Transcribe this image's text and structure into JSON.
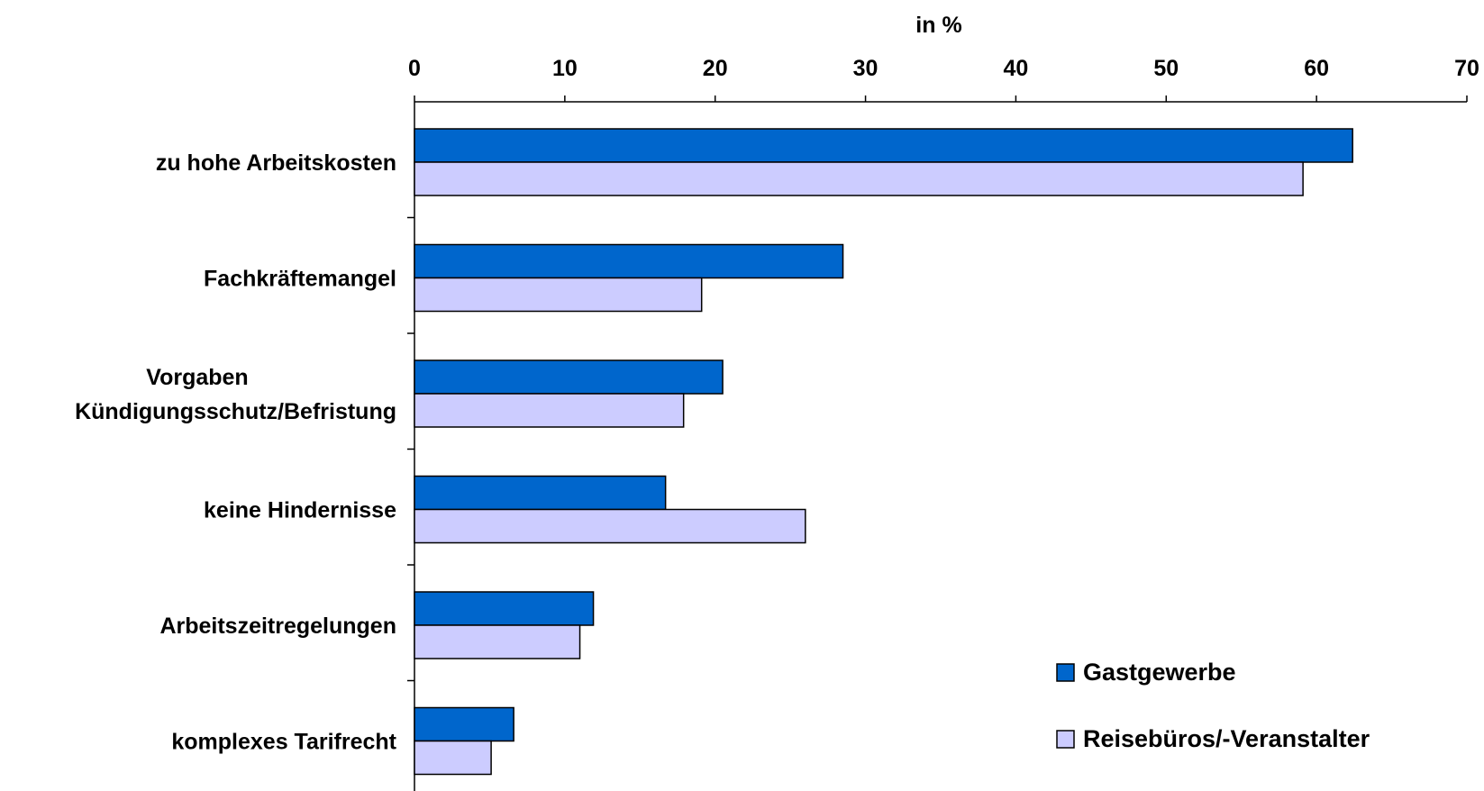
{
  "chart_data": {
    "type": "bar",
    "orientation": "horizontal",
    "xlabel": "in %",
    "xlim": [
      0,
      70
    ],
    "x_ticks": [
      "0",
      "10",
      "20",
      "30",
      "40",
      "50",
      "60",
      "70"
    ],
    "x_axis_position": "top",
    "categories": [
      [
        "zu hohe Arbeitskosten"
      ],
      [
        "Fachkräftemangel"
      ],
      [
        "Vorgaben",
        "Kündigungsschutz/Befristung"
      ],
      [
        "keine Hindernisse"
      ],
      [
        "Arbeitszeitregelungen"
      ],
      [
        "komplexes Tarifrecht"
      ]
    ],
    "series": [
      {
        "name": "Gastgewerbe",
        "color": "#0066CC",
        "values": [
          62.4,
          28.5,
          20.5,
          16.7,
          11.9,
          6.6
        ]
      },
      {
        "name": "Reisebüros/-Veranstalter",
        "color": "#CCCCFF",
        "values": [
          59.1,
          19.1,
          17.9,
          26.0,
          11.0,
          5.1
        ]
      }
    ],
    "legend_position": "bottom-right",
    "grid": false
  }
}
